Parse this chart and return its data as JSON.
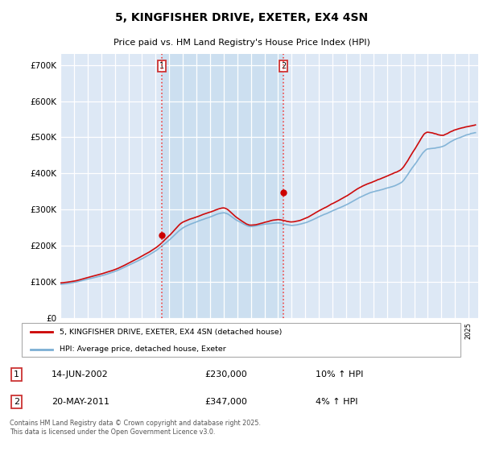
{
  "title": "5, KINGFISHER DRIVE, EXETER, EX4 4SN",
  "subtitle": "Price paid vs. HM Land Registry's House Price Index (HPI)",
  "ylim": [
    0,
    730000
  ],
  "yticks": [
    0,
    100000,
    200000,
    300000,
    400000,
    500000,
    600000,
    700000
  ],
  "xlim_start": 1995.0,
  "xlim_end": 2025.7,
  "plot_bg": "#dde8f5",
  "shade_bg": "#ccdff0",
  "grid_color": "#ffffff",
  "sale1_date": "14-JUN-2002",
  "sale1_price": 230000,
  "sale1_hpi_text": "10% ↑ HPI",
  "sale1_label": "1",
  "sale1_x": 2002.45,
  "sale2_date": "20-MAY-2011",
  "sale2_price": 347000,
  "sale2_hpi_text": "4% ↑ HPI",
  "sale2_label": "2",
  "sale2_x": 2011.38,
  "vline_color": "#ee4444",
  "legend_label_red": "5, KINGFISHER DRIVE, EXETER, EX4 4SN (detached house)",
  "legend_label_blue": "HPI: Average price, detached house, Exeter",
  "footer": "Contains HM Land Registry data © Crown copyright and database right 2025.\nThis data is licensed under the Open Government Licence v3.0.",
  "red_color": "#cc0000",
  "blue_color": "#7bafd4",
  "marker_color": "#cc0000",
  "title_fontsize": 10,
  "subtitle_fontsize": 8
}
